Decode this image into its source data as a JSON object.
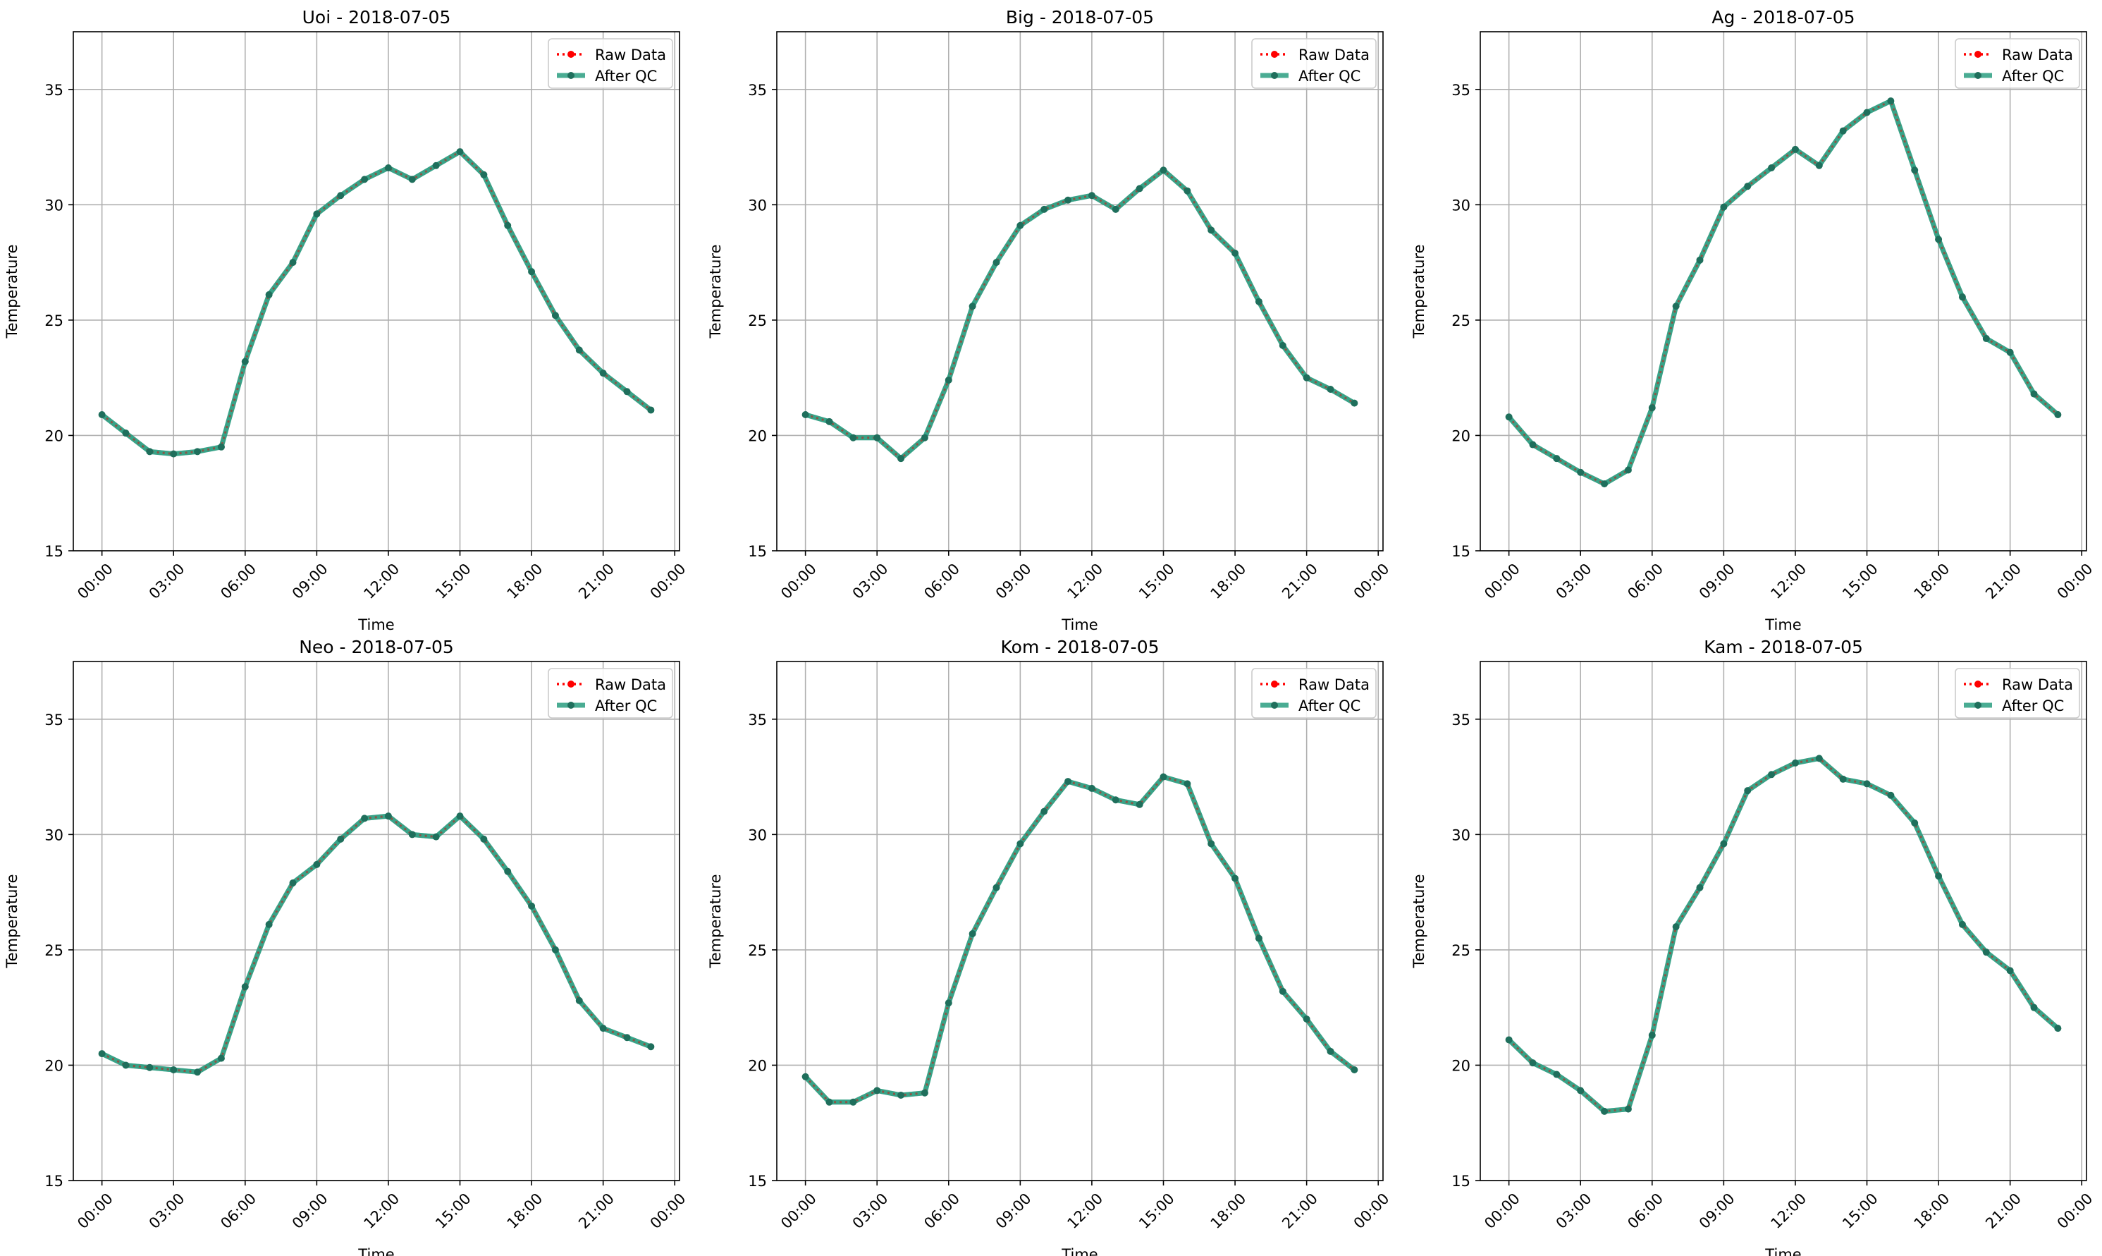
{
  "chart_data": [
    {
      "type": "line",
      "title": "Uoi - 2018-07-05",
      "xlabel": "Time",
      "ylabel": "Temperature",
      "ylim": [
        15,
        37.5
      ],
      "yticks": [
        15,
        20,
        25,
        30,
        35
      ],
      "xlim": [
        -1.2,
        24.2
      ],
      "xticks": [
        0,
        3,
        6,
        9,
        12,
        15,
        18,
        21,
        24
      ],
      "xtick_labels": [
        "00:00",
        "03:00",
        "06:00",
        "09:00",
        "12:00",
        "15:00",
        "18:00",
        "21:00",
        "00:00"
      ],
      "grid": true,
      "legend_position": "top-right",
      "x": [
        0,
        1,
        2,
        3,
        4,
        5,
        6,
        7,
        8,
        9,
        10,
        11,
        12,
        13,
        14,
        15,
        16,
        17,
        18,
        19,
        20,
        21,
        22,
        23
      ],
      "series": [
        {
          "name": "Raw Data",
          "color": "#ff0000",
          "values": [
            20.9,
            20.1,
            19.3,
            19.2,
            19.3,
            19.5,
            23.2,
            26.1,
            27.5,
            29.6,
            30.4,
            31.1,
            31.6,
            31.1,
            31.7,
            32.3,
            31.3,
            29.1,
            27.1,
            25.2,
            23.7,
            22.7,
            21.9,
            21.1
          ]
        },
        {
          "name": "After QC",
          "color": "#2a9d80",
          "values": [
            20.9,
            20.1,
            19.3,
            19.2,
            19.3,
            19.5,
            23.2,
            26.1,
            27.5,
            29.6,
            30.4,
            31.1,
            31.6,
            31.1,
            31.7,
            32.3,
            31.3,
            29.1,
            27.1,
            25.2,
            23.7,
            22.7,
            21.9,
            21.1
          ]
        }
      ]
    },
    {
      "type": "line",
      "title": "Big - 2018-07-05",
      "xlabel": "Time",
      "ylabel": "Temperature",
      "ylim": [
        15,
        37.5
      ],
      "yticks": [
        15,
        20,
        25,
        30,
        35
      ],
      "xlim": [
        -1.2,
        24.2
      ],
      "xticks": [
        0,
        3,
        6,
        9,
        12,
        15,
        18,
        21,
        24
      ],
      "xtick_labels": [
        "00:00",
        "03:00",
        "06:00",
        "09:00",
        "12:00",
        "15:00",
        "18:00",
        "21:00",
        "00:00"
      ],
      "grid": true,
      "legend_position": "top-right",
      "x": [
        0,
        1,
        2,
        3,
        4,
        5,
        6,
        7,
        8,
        9,
        10,
        11,
        12,
        13,
        14,
        15,
        16,
        17,
        18,
        19,
        20,
        21,
        22,
        23
      ],
      "series": [
        {
          "name": "Raw Data",
          "color": "#ff0000",
          "values": [
            20.9,
            20.6,
            19.9,
            19.9,
            19.0,
            19.9,
            22.4,
            25.6,
            27.5,
            29.1,
            29.8,
            30.2,
            30.4,
            29.8,
            30.7,
            31.5,
            30.6,
            28.9,
            27.9,
            25.8,
            23.9,
            22.5,
            22.0,
            21.4
          ]
        },
        {
          "name": "After QC",
          "color": "#2a9d80",
          "values": [
            20.9,
            20.6,
            19.9,
            19.9,
            19.0,
            19.9,
            22.4,
            25.6,
            27.5,
            29.1,
            29.8,
            30.2,
            30.4,
            29.8,
            30.7,
            31.5,
            30.6,
            28.9,
            27.9,
            25.8,
            23.9,
            22.5,
            22.0,
            21.4
          ]
        }
      ]
    },
    {
      "type": "line",
      "title": "Ag - 2018-07-05",
      "xlabel": "Time",
      "ylabel": "Temperature",
      "ylim": [
        15,
        37.5
      ],
      "yticks": [
        15,
        20,
        25,
        30,
        35
      ],
      "xlim": [
        -1.2,
        24.2
      ],
      "xticks": [
        0,
        3,
        6,
        9,
        12,
        15,
        18,
        21,
        24
      ],
      "xtick_labels": [
        "00:00",
        "03:00",
        "06:00",
        "09:00",
        "12:00",
        "15:00",
        "18:00",
        "21:00",
        "00:00"
      ],
      "grid": true,
      "legend_position": "top-right",
      "x": [
        0,
        1,
        2,
        3,
        4,
        5,
        6,
        7,
        8,
        9,
        10,
        11,
        12,
        13,
        14,
        15,
        16,
        17,
        18,
        19,
        20,
        21,
        22,
        23
      ],
      "series": [
        {
          "name": "Raw Data",
          "color": "#ff0000",
          "values": [
            20.8,
            19.6,
            19.0,
            18.4,
            17.9,
            18.5,
            21.2,
            25.6,
            27.6,
            29.9,
            30.8,
            31.6,
            32.4,
            31.7,
            33.2,
            34.0,
            34.5,
            31.5,
            28.5,
            26.0,
            24.2,
            23.6,
            21.8,
            20.9
          ]
        },
        {
          "name": "After QC",
          "color": "#2a9d80",
          "values": [
            20.8,
            19.6,
            19.0,
            18.4,
            17.9,
            18.5,
            21.2,
            25.6,
            27.6,
            29.9,
            30.8,
            31.6,
            32.4,
            31.7,
            33.2,
            34.0,
            34.5,
            31.5,
            28.5,
            26.0,
            24.2,
            23.6,
            21.8,
            20.9
          ]
        }
      ]
    },
    {
      "type": "line",
      "title": "Neo - 2018-07-05",
      "xlabel": "Time",
      "ylabel": "Temperature",
      "ylim": [
        15,
        37.5
      ],
      "yticks": [
        15,
        20,
        25,
        30,
        35
      ],
      "xlim": [
        -1.2,
        24.2
      ],
      "xticks": [
        0,
        3,
        6,
        9,
        12,
        15,
        18,
        21,
        24
      ],
      "xtick_labels": [
        "00:00",
        "03:00",
        "06:00",
        "09:00",
        "12:00",
        "15:00",
        "18:00",
        "21:00",
        "00:00"
      ],
      "grid": true,
      "legend_position": "top-right",
      "x": [
        0,
        1,
        2,
        3,
        4,
        5,
        6,
        7,
        8,
        9,
        10,
        11,
        12,
        13,
        14,
        15,
        16,
        17,
        18,
        19,
        20,
        21,
        22,
        23
      ],
      "series": [
        {
          "name": "Raw Data",
          "color": "#ff0000",
          "values": [
            20.5,
            20.0,
            19.9,
            19.8,
            19.7,
            20.3,
            23.4,
            26.1,
            27.9,
            28.7,
            29.8,
            30.7,
            30.8,
            30.0,
            29.9,
            30.8,
            29.8,
            28.4,
            26.9,
            25.0,
            22.8,
            21.6,
            21.2,
            20.8
          ]
        },
        {
          "name": "After QC",
          "color": "#2a9d80",
          "values": [
            20.5,
            20.0,
            19.9,
            19.8,
            19.7,
            20.3,
            23.4,
            26.1,
            27.9,
            28.7,
            29.8,
            30.7,
            30.8,
            30.0,
            29.9,
            30.8,
            29.8,
            28.4,
            26.9,
            25.0,
            22.8,
            21.6,
            21.2,
            20.8
          ]
        }
      ]
    },
    {
      "type": "line",
      "title": "Kom - 2018-07-05",
      "xlabel": "Time",
      "ylabel": "Temperature",
      "ylim": [
        15,
        37.5
      ],
      "yticks": [
        15,
        20,
        25,
        30,
        35
      ],
      "xlim": [
        -1.2,
        24.2
      ],
      "xticks": [
        0,
        3,
        6,
        9,
        12,
        15,
        18,
        21,
        24
      ],
      "xtick_labels": [
        "00:00",
        "03:00",
        "06:00",
        "09:00",
        "12:00",
        "15:00",
        "18:00",
        "21:00",
        "00:00"
      ],
      "grid": true,
      "legend_position": "top-right",
      "x": [
        0,
        1,
        2,
        3,
        4,
        5,
        6,
        7,
        8,
        9,
        10,
        11,
        12,
        13,
        14,
        15,
        16,
        17,
        18,
        19,
        20,
        21,
        22,
        23
      ],
      "series": [
        {
          "name": "Raw Data",
          "color": "#ff0000",
          "values": [
            19.5,
            18.4,
            18.4,
            18.9,
            18.7,
            18.8,
            22.7,
            25.7,
            27.7,
            29.6,
            31.0,
            32.3,
            32.0,
            31.5,
            31.3,
            32.5,
            32.2,
            29.6,
            28.1,
            25.5,
            23.2,
            22.0,
            20.6,
            19.8
          ]
        },
        {
          "name": "After QC",
          "color": "#2a9d80",
          "values": [
            19.5,
            18.4,
            18.4,
            18.9,
            18.7,
            18.8,
            22.7,
            25.7,
            27.7,
            29.6,
            31.0,
            32.3,
            32.0,
            31.5,
            31.3,
            32.5,
            32.2,
            29.6,
            28.1,
            25.5,
            23.2,
            22.0,
            20.6,
            19.8
          ]
        }
      ]
    },
    {
      "type": "line",
      "title": "Kam - 2018-07-05",
      "xlabel": "Time",
      "ylabel": "Temperature",
      "ylim": [
        15,
        37.5
      ],
      "yticks": [
        15,
        20,
        25,
        30,
        35
      ],
      "xlim": [
        -1.2,
        24.2
      ],
      "xticks": [
        0,
        3,
        6,
        9,
        12,
        15,
        18,
        21,
        24
      ],
      "xtick_labels": [
        "00:00",
        "03:00",
        "06:00",
        "09:00",
        "12:00",
        "15:00",
        "18:00",
        "21:00",
        "00:00"
      ],
      "grid": true,
      "legend_position": "top-right",
      "x": [
        0,
        1,
        2,
        3,
        4,
        5,
        6,
        7,
        8,
        9,
        10,
        11,
        12,
        13,
        14,
        15,
        16,
        17,
        18,
        19,
        20,
        21,
        22,
        23
      ],
      "series": [
        {
          "name": "Raw Data",
          "color": "#ff0000",
          "values": [
            21.1,
            20.1,
            19.6,
            18.9,
            18.0,
            18.1,
            21.3,
            26.0,
            27.7,
            29.6,
            31.9,
            32.6,
            33.1,
            33.3,
            32.4,
            32.2,
            31.7,
            30.5,
            28.2,
            26.1,
            24.9,
            24.1,
            22.5,
            21.6
          ]
        },
        {
          "name": "After QC",
          "color": "#2a9d80",
          "values": [
            21.1,
            20.1,
            19.6,
            18.9,
            18.0,
            18.1,
            21.3,
            26.0,
            27.7,
            29.6,
            31.9,
            32.6,
            33.1,
            33.3,
            32.4,
            32.2,
            31.7,
            30.5,
            28.2,
            26.1,
            24.9,
            24.1,
            22.5,
            21.6
          ]
        }
      ]
    }
  ]
}
